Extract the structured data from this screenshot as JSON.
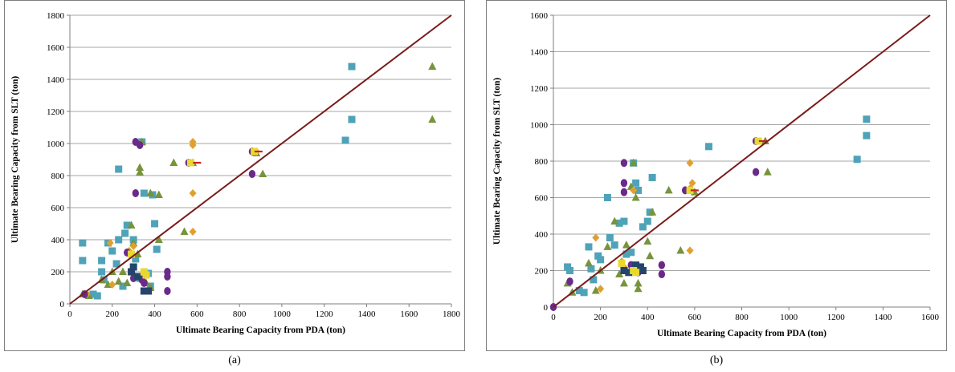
{
  "chart_data": [
    {
      "type": "scatter",
      "caption": "(a)",
      "xlabel": "Ultimate Bearing Capacity from PDA (ton)",
      "ylabel": "Ultimate Bearing Capacity from  SLT (ton)",
      "xlim": [
        0,
        1800
      ],
      "ylim": [
        0,
        1800
      ],
      "xticks": [
        0,
        200,
        400,
        600,
        800,
        1000,
        1200,
        1400,
        1600,
        1800
      ],
      "yticks": [
        0,
        200,
        400,
        600,
        800,
        1000,
        1200,
        1400,
        1600,
        1800
      ],
      "grid": "horizontal",
      "legend": "none",
      "reference_line": {
        "from": [
          0,
          0
        ],
        "to": [
          1800,
          1800
        ],
        "color": "#7b1b1b"
      },
      "series": [
        {
          "marker": "square",
          "color": "#4fa3b8",
          "points": [
            [
              60,
              380
            ],
            [
              60,
              270
            ],
            [
              110,
              60
            ],
            [
              130,
              50
            ],
            [
              150,
              270
            ],
            [
              150,
              200
            ],
            [
              160,
              150
            ],
            [
              180,
              380
            ],
            [
              200,
              330
            ],
            [
              220,
              250
            ],
            [
              230,
              400
            ],
            [
              230,
              840
            ],
            [
              250,
              110
            ],
            [
              260,
              440
            ],
            [
              270,
              490
            ],
            [
              290,
              310
            ],
            [
              300,
              400
            ],
            [
              310,
              280
            ],
            [
              330,
              160
            ],
            [
              340,
              1010
            ],
            [
              350,
              690
            ],
            [
              370,
              190
            ],
            [
              380,
              110
            ],
            [
              390,
              680
            ],
            [
              400,
              500
            ],
            [
              410,
              340
            ],
            [
              1300,
              1020
            ],
            [
              1330,
              1480
            ],
            [
              1330,
              1150
            ]
          ]
        },
        {
          "marker": "triangle",
          "color": "#77933c",
          "points": [
            [
              60,
              60
            ],
            [
              90,
              50
            ],
            [
              150,
              150
            ],
            [
              180,
              120
            ],
            [
              200,
              200
            ],
            [
              230,
              140
            ],
            [
              250,
              200
            ],
            [
              270,
              130
            ],
            [
              290,
              490
            ],
            [
              300,
              380
            ],
            [
              310,
              170
            ],
            [
              320,
              310
            ],
            [
              330,
              850
            ],
            [
              330,
              820
            ],
            [
              340,
              1010
            ],
            [
              360,
              130
            ],
            [
              380,
              100
            ],
            [
              380,
              690
            ],
            [
              420,
              680
            ],
            [
              420,
              400
            ],
            [
              490,
              880
            ],
            [
              540,
              450
            ],
            [
              580,
              880
            ],
            [
              880,
              940
            ],
            [
              910,
              810
            ],
            [
              1710,
              1480
            ],
            [
              1710,
              1150
            ]
          ]
        },
        {
          "marker": "diamond",
          "color": "#e0a030",
          "points": [
            [
              80,
              60
            ],
            [
              190,
              380
            ],
            [
              200,
              120
            ],
            [
              280,
              330
            ],
            [
              300,
              360
            ],
            [
              340,
              180
            ],
            [
              580,
              1010
            ],
            [
              580,
              990
            ],
            [
              580,
              690
            ],
            [
              580,
              450
            ],
            [
              880,
              950
            ]
          ]
        },
        {
          "marker": "circle",
          "color": "#6a2a8a",
          "points": [
            [
              70,
              60
            ],
            [
              270,
              320
            ],
            [
              300,
              160
            ],
            [
              310,
              1010
            ],
            [
              310,
              690
            ],
            [
              330,
              990
            ],
            [
              340,
              150
            ],
            [
              350,
              130
            ],
            [
              460,
              200
            ],
            [
              460,
              170
            ],
            [
              460,
              80
            ],
            [
              560,
              880
            ],
            [
              860,
              950
            ],
            [
              860,
              810
            ]
          ]
        },
        {
          "marker": "square",
          "color": "#24456b",
          "points": [
            [
              290,
              200
            ],
            [
              300,
              230
            ],
            [
              320,
              170
            ],
            [
              350,
              80
            ],
            [
              370,
              80
            ]
          ]
        },
        {
          "marker": "square",
          "color": "#e8d830",
          "points": [
            [
              290,
              310
            ],
            [
              350,
              200
            ],
            [
              360,
              180
            ],
            [
              570,
              880
            ],
            [
              870,
              950
            ]
          ]
        },
        {
          "marker": "dash",
          "color": "#cc2020",
          "points": [
            [
              600,
              880
            ],
            [
              890,
              950
            ]
          ]
        }
      ]
    },
    {
      "type": "scatter",
      "caption": "(b)",
      "xlabel": "Ultimate Bearing Capacity from PDA (ton)",
      "ylabel": "Ultimate Bearing Capacity from SLT (ton)",
      "xlim": [
        0,
        1600
      ],
      "ylim": [
        0,
        1600
      ],
      "xticks": [
        0,
        200,
        400,
        600,
        800,
        1000,
        1200,
        1400,
        1600
      ],
      "yticks": [
        0,
        200,
        400,
        600,
        800,
        1000,
        1200,
        1400,
        1600
      ],
      "grid": "horizontal",
      "legend": "none",
      "reference_line": {
        "from": [
          0,
          0
        ],
        "to": [
          1600,
          1600
        ],
        "color": "#7b1b1b"
      },
      "series": [
        {
          "marker": "square",
          "color": "#4fa3b8",
          "points": [
            [
              60,
              220
            ],
            [
              70,
              200
            ],
            [
              110,
              90
            ],
            [
              130,
              80
            ],
            [
              150,
              330
            ],
            [
              160,
              210
            ],
            [
              170,
              150
            ],
            [
              190,
              280
            ],
            [
              200,
              260
            ],
            [
              230,
              600
            ],
            [
              240,
              380
            ],
            [
              260,
              340
            ],
            [
              280,
              460
            ],
            [
              300,
              470
            ],
            [
              310,
              290
            ],
            [
              330,
              300
            ],
            [
              340,
              790
            ],
            [
              350,
              680
            ],
            [
              360,
              640
            ],
            [
              380,
              440
            ],
            [
              400,
              470
            ],
            [
              410,
              520
            ],
            [
              420,
              710
            ],
            [
              660,
              880
            ],
            [
              1290,
              810
            ],
            [
              1330,
              1030
            ],
            [
              1330,
              940
            ]
          ]
        },
        {
          "marker": "triangle",
          "color": "#77933c",
          "points": [
            [
              60,
              130
            ],
            [
              80,
              80
            ],
            [
              150,
              240
            ],
            [
              180,
              90
            ],
            [
              200,
              200
            ],
            [
              230,
              330
            ],
            [
              260,
              470
            ],
            [
              280,
              180
            ],
            [
              300,
              130
            ],
            [
              310,
              340
            ],
            [
              330,
              660
            ],
            [
              340,
              790
            ],
            [
              350,
              600
            ],
            [
              360,
              130
            ],
            [
              360,
              100
            ],
            [
              400,
              360
            ],
            [
              410,
              280
            ],
            [
              420,
              520
            ],
            [
              490,
              640
            ],
            [
              540,
              310
            ],
            [
              600,
              630
            ],
            [
              900,
              910
            ],
            [
              910,
              740
            ]
          ]
        },
        {
          "marker": "diamond",
          "color": "#e0a030",
          "points": [
            [
              180,
              380
            ],
            [
              200,
              100
            ],
            [
              290,
              250
            ],
            [
              300,
              220
            ],
            [
              340,
              640
            ],
            [
              580,
              790
            ],
            [
              580,
              650
            ],
            [
              580,
              310
            ],
            [
              590,
              680
            ]
          ]
        },
        {
          "marker": "circle",
          "color": "#6a2a8a",
          "points": [
            [
              0,
              0
            ],
            [
              70,
              140
            ],
            [
              300,
              790
            ],
            [
              300,
              680
            ],
            [
              300,
              630
            ],
            [
              330,
              230
            ],
            [
              340,
              200
            ],
            [
              360,
              190
            ],
            [
              460,
              230
            ],
            [
              460,
              180
            ],
            [
              560,
              640
            ],
            [
              860,
              910
            ],
            [
              860,
              740
            ]
          ]
        },
        {
          "marker": "square",
          "color": "#24456b",
          "points": [
            [
              300,
              200
            ],
            [
              320,
              190
            ],
            [
              350,
              230
            ],
            [
              370,
              220
            ],
            [
              380,
              200
            ]
          ]
        },
        {
          "marker": "square",
          "color": "#e8d830",
          "points": [
            [
              290,
              240
            ],
            [
              340,
              200
            ],
            [
              350,
              190
            ],
            [
              580,
              640
            ],
            [
              870,
              910
            ]
          ]
        },
        {
          "marker": "dash",
          "color": "#cc2020",
          "points": [
            [
              600,
              640
            ],
            [
              890,
              910
            ]
          ]
        }
      ]
    }
  ]
}
